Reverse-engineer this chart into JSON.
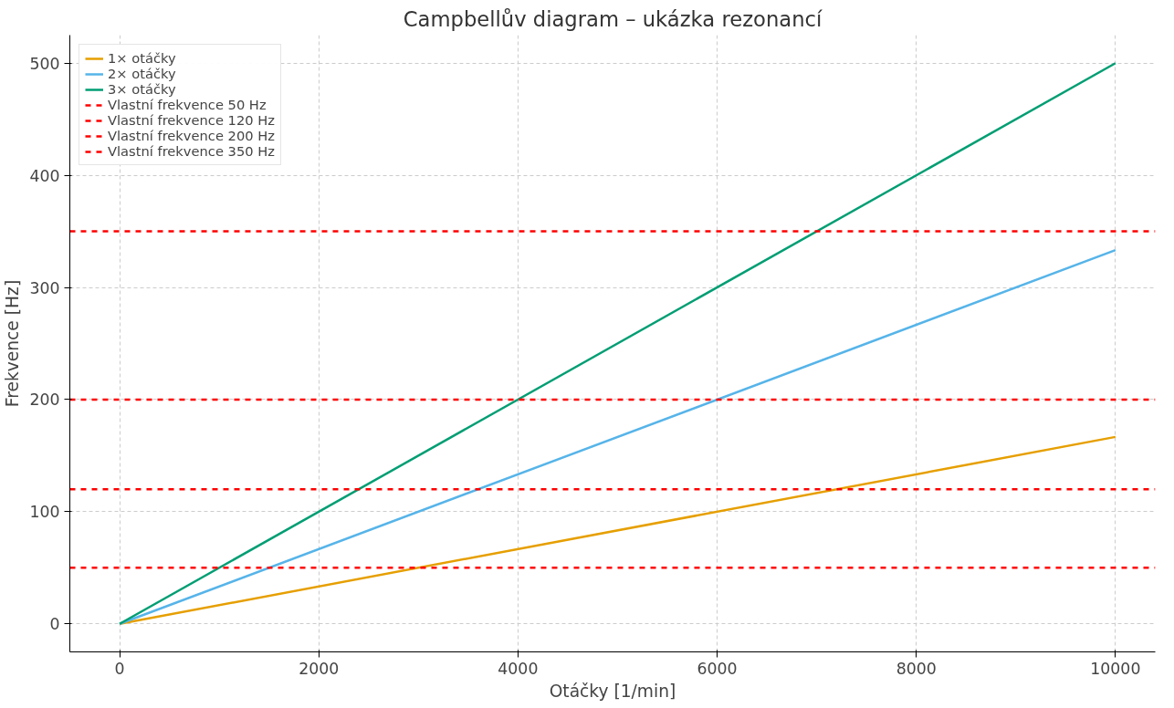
{
  "chart_data": {
    "type": "line",
    "title": "Campbellův diagram – ukázka rezonancí",
    "xlabel": "Otáčky [1/min]",
    "ylabel": "Frekvence [Hz]",
    "x": [
      0,
      10000
    ],
    "series": [
      {
        "name": "1× otáčky",
        "color": "#e69f00",
        "values": [
          0,
          166.7
        ]
      },
      {
        "name": "2× otáčky",
        "color": "#56b4e9",
        "values": [
          0,
          333.3
        ]
      },
      {
        "name": "3× otáčky",
        "color": "#009e73",
        "values": [
          0,
          500
        ]
      }
    ],
    "ref_lines": [
      {
        "axis": "y",
        "value": 50,
        "label": "Vlastní frekvence 50 Hz",
        "color": "#ff0000",
        "line_style": "dashed"
      },
      {
        "axis": "y",
        "value": 120,
        "label": "Vlastní frekvence 120 Hz",
        "color": "#ff0000",
        "line_style": "dashed"
      },
      {
        "axis": "y",
        "value": 200,
        "label": "Vlastní frekvence 200 Hz",
        "color": "#ff0000",
        "line_style": "dashed"
      },
      {
        "axis": "y",
        "value": 350,
        "label": "Vlastní frekvence 350 Hz",
        "color": "#ff0000",
        "line_style": "dashed"
      }
    ],
    "xlim": [
      -500,
      10400
    ],
    "ylim": [
      -25,
      525
    ],
    "xticks": [
      0,
      2000,
      4000,
      6000,
      8000,
      10000
    ],
    "yticks": [
      0,
      100,
      200,
      300,
      400,
      500
    ],
    "grid": true,
    "legend": "top left",
    "line_style": "solid"
  }
}
